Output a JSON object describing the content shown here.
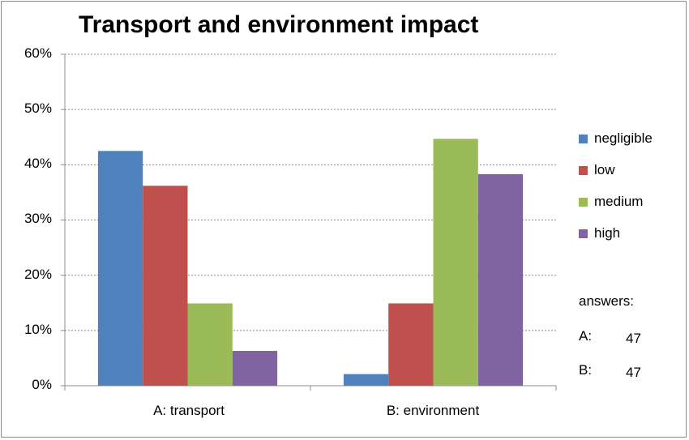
{
  "chart_data": {
    "type": "bar",
    "title": "Transport and environment impact",
    "categories": [
      "A: transport",
      "B: environment"
    ],
    "series": [
      {
        "name": "negligible",
        "color": "#4f81bd",
        "values": [
          42.5,
          2.1
        ]
      },
      {
        "name": "low",
        "color": "#c0504d",
        "values": [
          36.2,
          14.9
        ]
      },
      {
        "name": "medium",
        "color": "#9bbb59",
        "values": [
          14.9,
          44.7
        ]
      },
      {
        "name": "high",
        "color": "#8064a2",
        "values": [
          6.3,
          38.3
        ]
      }
    ],
    "yticks": [
      "0%",
      "10%",
      "20%",
      "30%",
      "40%",
      "50%",
      "60%"
    ],
    "ylim": [
      0,
      60
    ],
    "grid": true,
    "legend_position": "right",
    "xlabel": "",
    "ylabel": ""
  },
  "answers": {
    "label": "answers:",
    "rows": [
      {
        "key": "A:",
        "value": "47"
      },
      {
        "key": "B:",
        "value": "47"
      }
    ]
  }
}
